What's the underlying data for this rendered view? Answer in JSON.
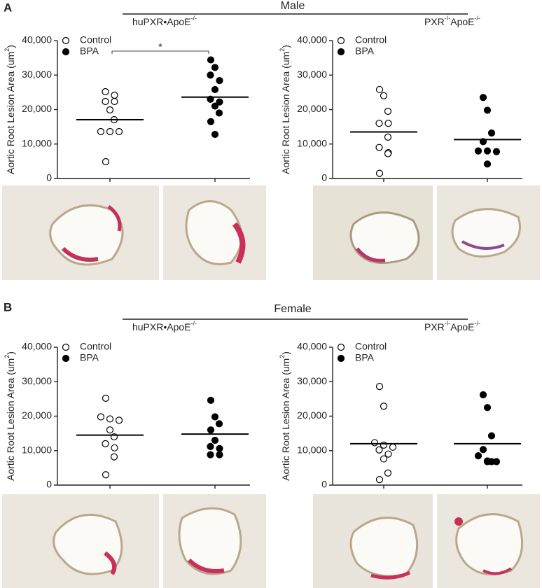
{
  "figure": {
    "panel_a": "A",
    "panel_b": "B",
    "male": "Male",
    "female": "Female"
  },
  "chart_data": [
    {
      "type": "scatter",
      "title": [
        {
          "text": "huPXR•ApoE"
        },
        {
          "text": "-/-",
          "sup": true
        }
      ],
      "ylabel": [
        {
          "text": "Aortic Root Lesion Area (um"
        },
        {
          "text": "2",
          "sup": true
        },
        {
          "text": ")"
        }
      ],
      "ylim": [
        0,
        40000
      ],
      "yticks": [
        0,
        {
          "value": 10000,
          "label": "10,000"
        },
        {
          "value": 20000,
          "label": "20,000"
        },
        {
          "value": 30000,
          "label": "30,000"
        },
        {
          "value": 40000,
          "label": "40,000"
        }
      ],
      "legend": "upper left",
      "annotation": "*",
      "series": [
        {
          "name": "Control",
          "color": "#ffffff",
          "values": [
            25180,
            24160,
            22330,
            22330,
            19900,
            17060,
            13600,
            13600,
            13600,
            4870
          ],
          "mean": 17060
        },
        {
          "name": "BPA",
          "color": "#000000",
          "values": [
            34400,
            32200,
            30000,
            28400,
            25800,
            23000,
            22200,
            21000,
            19000,
            16500,
            12800
          ],
          "mean": 23600
        }
      ]
    },
    {
      "type": "scatter",
      "title": [
        {
          "text": "PXR"
        },
        {
          "text": "-/-",
          "sup": true
        },
        {
          "text": "ApoE"
        },
        {
          "text": "-/-",
          "sup": true
        }
      ],
      "ylabel": [
        {
          "text": "Aortic Root Lesion Area (um"
        },
        {
          "text": "2",
          "sup": true
        },
        {
          "text": ")"
        }
      ],
      "ylim": [
        0,
        40000
      ],
      "yticks": [
        0,
        {
          "value": 10000,
          "label": "10,000"
        },
        {
          "value": 20000,
          "label": "20,000"
        },
        {
          "value": 30000,
          "label": "30,000"
        },
        {
          "value": 40000,
          "label": "40,000"
        }
      ],
      "legend": "upper left",
      "series": [
        {
          "name": "Control",
          "color": "#ffffff",
          "values": [
            25800,
            24000,
            19500,
            16000,
            16000,
            12000,
            9000,
            7500,
            7200,
            1500
          ],
          "mean": 13500
        },
        {
          "name": "BPA",
          "color": "#000000",
          "values": [
            23500,
            19800,
            13200,
            10700,
            8000,
            8000,
            7800,
            4200
          ],
          "mean": 11300
        }
      ]
    },
    {
      "type": "scatter",
      "title": [
        {
          "text": "huPXR•ApoE"
        },
        {
          "text": "-/-",
          "sup": true
        }
      ],
      "ylabel": [
        {
          "text": "Aortic Root Lesion Area (um"
        },
        {
          "text": "2",
          "sup": true
        },
        {
          "text": ")"
        }
      ],
      "ylim": [
        0,
        40000
      ],
      "yticks": [
        0,
        {
          "value": 10000,
          "label": "10,000"
        },
        {
          "value": 20000,
          "label": "20,000"
        },
        {
          "value": 30000,
          "label": "30,000"
        },
        {
          "value": 40000,
          "label": "40,000"
        }
      ],
      "legend": "upper left",
      "series": [
        {
          "name": "Control",
          "color": "#ffffff",
          "values": [
            25200,
            19800,
            19200,
            18800,
            16000,
            14000,
            12000,
            10800,
            8200,
            3000
          ],
          "mean": 14500
        },
        {
          "name": "BPA",
          "color": "#000000",
          "values": [
            24600,
            19800,
            17800,
            16000,
            13000,
            11200,
            10600,
            8800,
            8800
          ],
          "mean": 14800
        }
      ]
    },
    {
      "type": "scatter",
      "title": [
        {
          "text": "PXR"
        },
        {
          "text": "-/-",
          "sup": true
        },
        {
          "text": "ApoE"
        },
        {
          "text": "-/-",
          "sup": true
        }
      ],
      "ylabel": [
        {
          "text": "Aortic Root Lesion Area (um"
        },
        {
          "text": "2",
          "sup": true
        },
        {
          "text": ")"
        }
      ],
      "ylim": [
        0,
        40000
      ],
      "yticks": [
        0,
        {
          "value": 10000,
          "label": "10,000"
        },
        {
          "value": 20000,
          "label": "20,000"
        },
        {
          "value": 30000,
          "label": "30,000"
        },
        {
          "value": 40000,
          "label": "40,000"
        }
      ],
      "legend": "upper left",
      "series": [
        {
          "name": "Control",
          "color": "#ffffff",
          "values": [
            28600,
            22900,
            12300,
            11600,
            11000,
            10200,
            9000,
            7600,
            3500,
            1600
          ],
          "mean": 12000
        },
        {
          "name": "BPA",
          "color": "#000000",
          "values": [
            26200,
            22500,
            14300,
            10300,
            8500,
            7000,
            6800,
            6800,
            6800
          ],
          "mean": 12000
        }
      ]
    }
  ]
}
